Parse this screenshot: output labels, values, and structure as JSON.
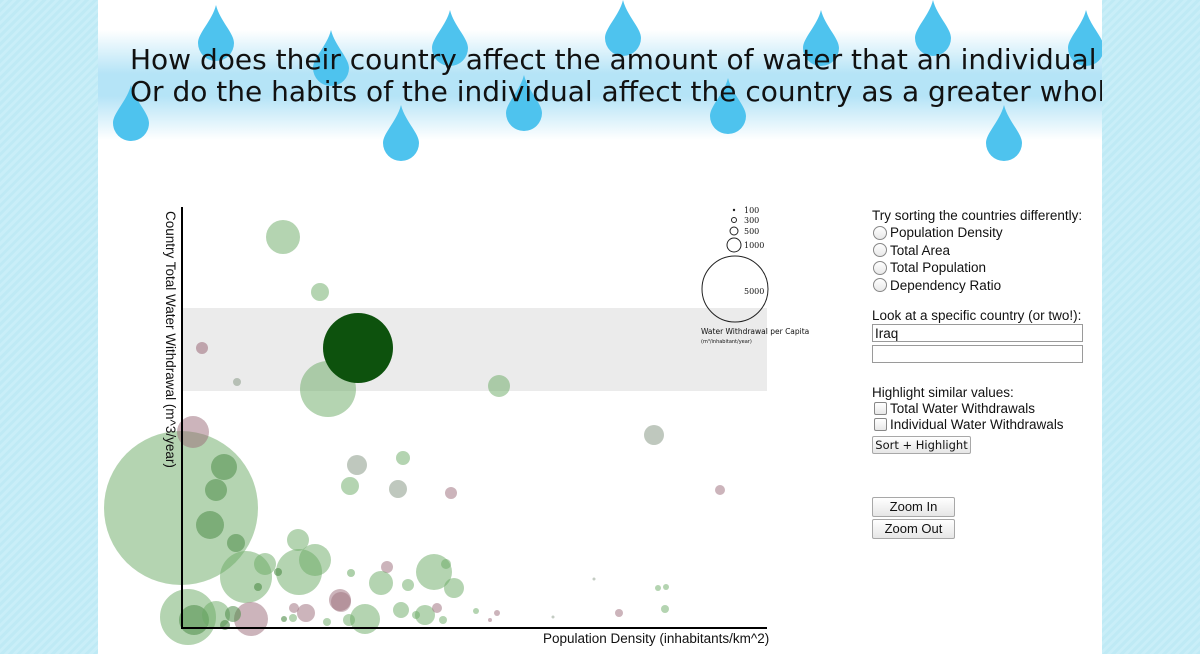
{
  "header": {
    "question_line1": "How does their country affect the amount of water that an individual uses?",
    "question_line2": "Or do the habits of the individual affect the country as a greater whole?"
  },
  "chart": {
    "ylabel": "Country Total Water Withdrawal (m^3/year)",
    "xlabel": "Population Density (inhabitants/km^2)",
    "highlight_color": "#0d520d",
    "size_legend": {
      "title": "Water Withdrawal per Capita",
      "subtitle": "(m³/inhabitant/year)",
      "entries": [
        "100",
        "300",
        "500",
        "1000",
        "5000"
      ]
    }
  },
  "controls": {
    "sort_title": "Try sorting the countries differently:",
    "sort_options": [
      "Population Density",
      "Total Area",
      "Total Population",
      "Dependency Ratio"
    ],
    "country_title": "Look at a specific country (or two!):",
    "country_input1": "Iraq",
    "country_input2": "",
    "highlight_title": "Highlight similar values:",
    "highlight_options": [
      "Total Water Withdrawals",
      "Individual Water Withdrawals"
    ],
    "sort_highlight_button": "Sort + Highlight",
    "zoom_in_button": "Zoom In",
    "zoom_out_button": "Zoom Out"
  },
  "colors": {
    "drop": "#4ec3ee",
    "bubble_green": "#6aaa64",
    "bubble_mauve": "#9a6a78",
    "bubble_gray": "#8a9a88"
  }
}
